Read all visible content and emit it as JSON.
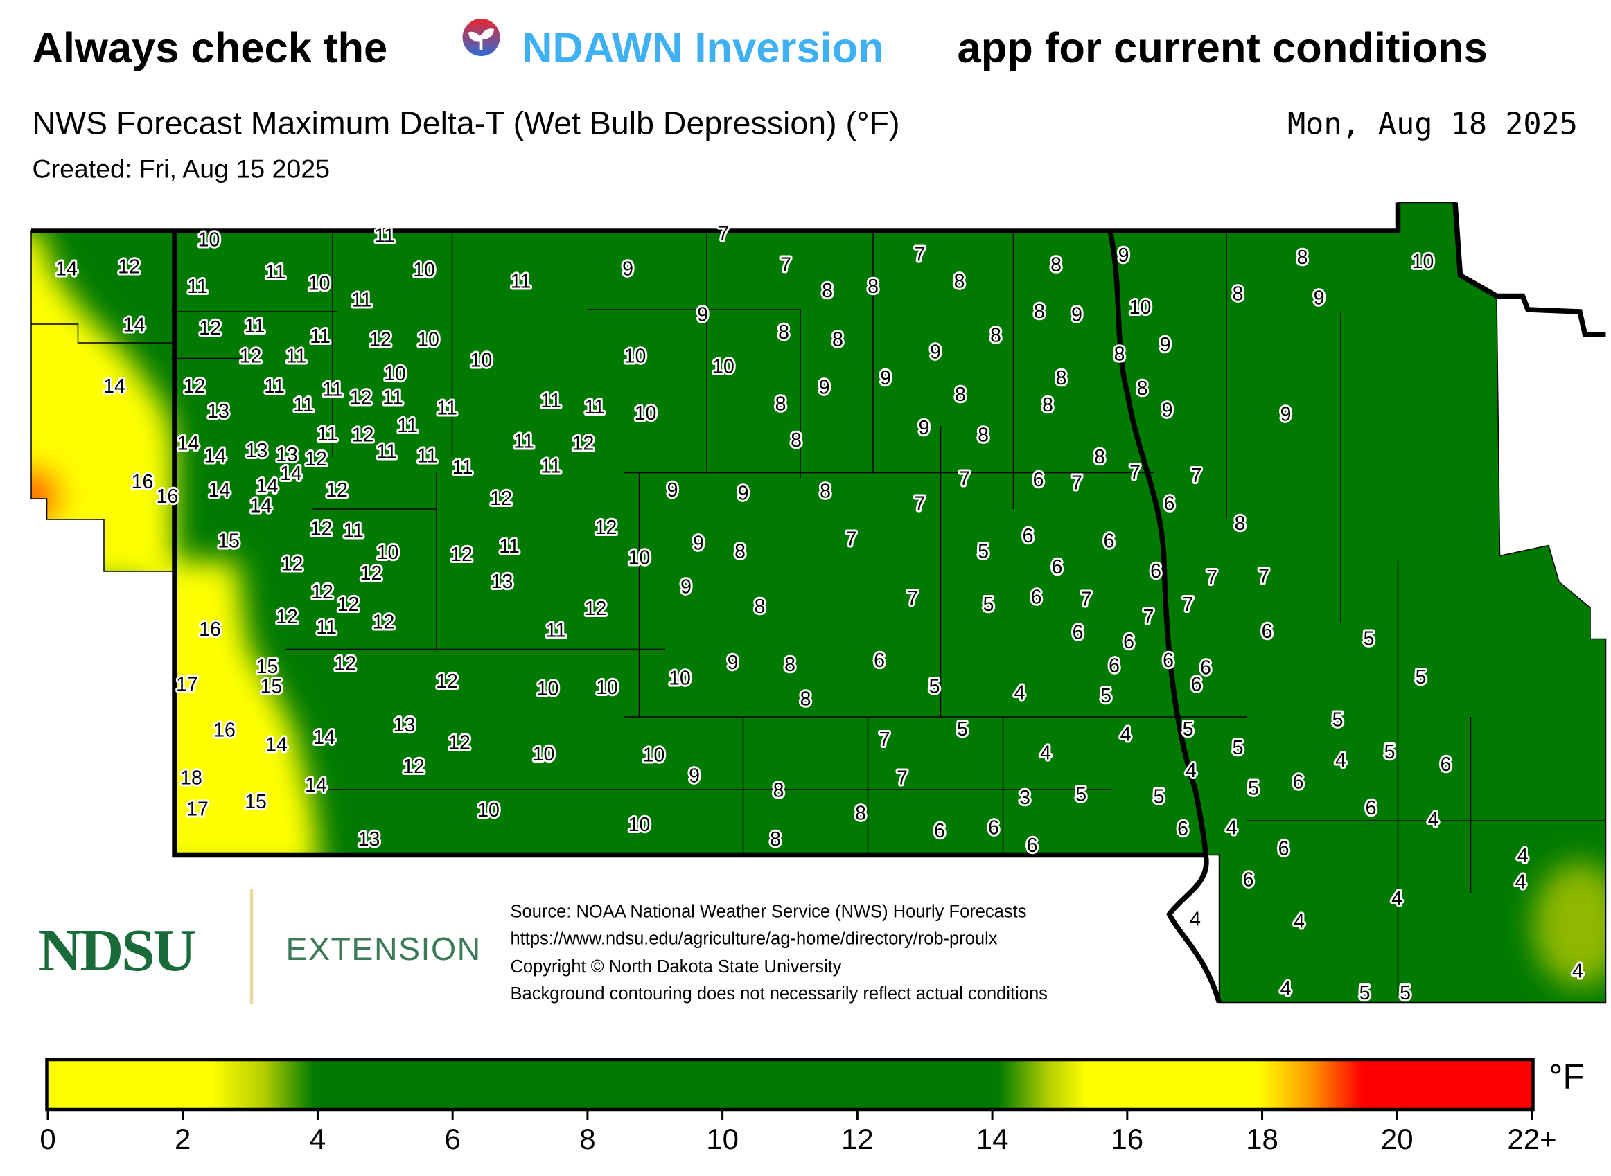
{
  "header": {
    "title": [
      "Always check the",
      "NDAWN Inversion",
      "app for current conditions"
    ],
    "subtitle": "NWS Forecast Maximum Delta-T (Wet Bulb Depression) (°F)",
    "valid_date": "Mon, Aug 18 2025",
    "created": "Created: Fri, Aug 15 2025"
  },
  "map": {
    "labels": [
      10,
      11,
      7,
      14,
      12,
      11,
      11,
      10,
      11,
      10,
      11,
      9,
      7,
      7,
      8,
      8,
      8,
      8,
      9,
      8,
      10,
      8,
      9,
      10,
      8,
      9,
      9,
      14,
      12,
      11,
      11,
      12,
      10,
      8,
      8,
      8,
      12,
      11,
      10,
      10,
      10,
      10,
      9,
      8,
      9,
      8,
      8,
      14,
      12,
      11,
      11,
      12,
      11,
      11,
      13,
      11,
      11,
      11,
      10,
      8,
      9,
      9,
      8,
      8,
      9,
      9,
      9,
      8,
      8,
      14,
      14,
      13,
      13,
      12,
      11,
      12,
      11,
      11,
      11,
      11,
      11,
      12,
      11,
      8,
      7,
      7,
      7,
      6,
      7,
      6,
      7,
      16,
      16,
      14,
      14,
      14,
      14,
      12,
      12,
      9,
      9,
      8,
      12,
      12,
      11,
      8,
      15,
      12,
      10,
      12,
      12,
      11,
      10,
      9,
      8,
      7,
      5,
      6,
      6,
      6,
      6,
      7,
      7,
      13,
      12,
      12,
      9,
      7,
      5,
      6,
      7,
      7,
      7,
      12,
      8,
      16,
      12,
      11,
      12,
      11,
      6,
      6,
      6,
      5,
      15,
      15,
      12,
      12,
      10,
      10,
      10,
      9,
      8,
      6,
      17,
      8,
      5,
      4,
      5,
      6,
      6,
      6,
      6,
      5,
      13,
      16,
      14,
      14,
      12,
      10,
      10,
      7,
      5,
      4,
      5,
      4,
      5,
      5,
      4,
      5,
      6,
      18,
      12,
      9,
      7,
      4,
      5,
      6,
      14,
      15,
      17,
      10,
      8,
      3,
      5,
      5,
      6,
      4,
      13,
      10,
      8,
      6,
      6,
      6,
      4,
      8,
      6,
      6,
      4,
      6,
      4,
      4,
      4,
      4,
      4,
      4,
      5,
      5
    ]
  },
  "footer": {
    "logo": "NDSU",
    "logo_sub": "EXTENSION",
    "notes": [
      "Source: NOAA National Weather Service (NWS) Hourly Forecasts",
      "https://www.ndsu.edu/agriculture/ag-home/directory/rob-proulx",
      "Copyright © North Dakota State University",
      "Background contouring does not necessarily reflect actual conditions"
    ]
  },
  "legend": {
    "range": [
      0,
      22
    ],
    "ticks": [
      0,
      2,
      4,
      6,
      8,
      10,
      12,
      14,
      16,
      18,
      20,
      {
        "value": 22,
        "label": "22+"
      }
    ],
    "unit": "°F"
  }
}
